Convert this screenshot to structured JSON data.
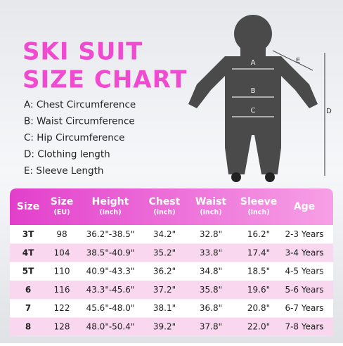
{
  "title": [
    "SKI SUIT",
    "SIZE CHART"
  ],
  "legend": [
    "A: Chest Circumference",
    "B: Waist Circumference",
    "C: Hip Circumference",
    "D: Clothing length",
    "E: Sleeve Length"
  ],
  "diagram_labels": [
    "A",
    "B",
    "C",
    "D",
    "E"
  ],
  "table": {
    "headers": [
      {
        "name": "Size"
      },
      {
        "name": "Size",
        "unit": "(EU)"
      },
      {
        "name": "Height",
        "unit": "(inch)"
      },
      {
        "name": "Chest",
        "unit": "(inch)"
      },
      {
        "name": "Waist",
        "unit": "(inch)"
      },
      {
        "name": "Sleeve",
        "unit": "(inch)"
      },
      {
        "name": "Age"
      }
    ],
    "rows": [
      [
        "3T",
        "98",
        "36.2\"-38.5\"",
        "34.2\"",
        "32.8\"",
        "16.2\"",
        "2-3 Years"
      ],
      [
        "4T",
        "104",
        "38.5\"-40.9\"",
        "35.2\"",
        "33.8\"",
        "17.4\"",
        "3-4 Years"
      ],
      [
        "5T",
        "110",
        "40.9\"-43.3\"",
        "36.2\"",
        "34.8\"",
        "18.5\"",
        "4-5 Years"
      ],
      [
        "6",
        "116",
        "43.3\"-45.6\"",
        "37.2\"",
        "35.8\"",
        "19.6\"",
        "5-6 Years"
      ],
      [
        "7",
        "122",
        "45.6\"-48.0\"",
        "38.1\"",
        "36.8\"",
        "20.8\"",
        "6-7 Years"
      ],
      [
        "8",
        "128",
        "48.0\"-50.4\"",
        "39.2\"",
        "37.8\"",
        "22.0\"",
        "7-8 Years"
      ]
    ]
  }
}
